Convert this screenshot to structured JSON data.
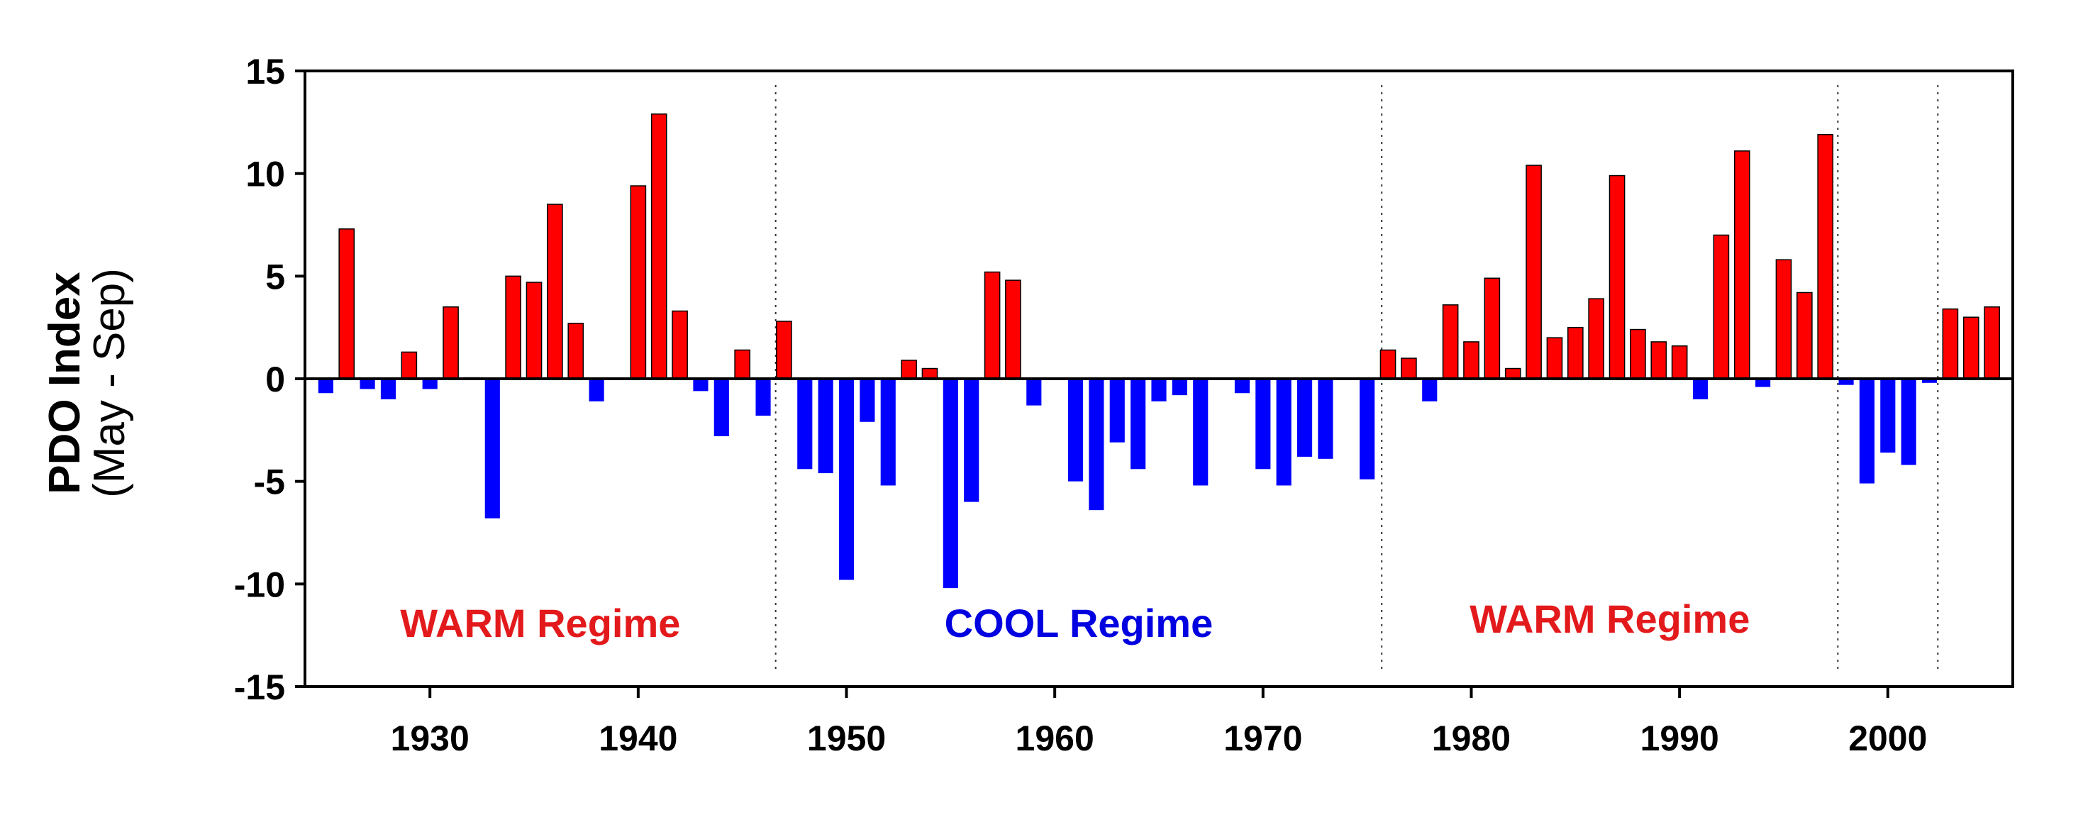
{
  "chart_data": {
    "type": "bar",
    "title": "",
    "ylabel": "PDO Index",
    "ylabel_sub": "(May - Sep)",
    "xlabel": "",
    "xlim": [
      1924,
      2006
    ],
    "ylim": [
      -15,
      15
    ],
    "y_ticks": [
      "15",
      "10",
      "5",
      "0",
      "-5",
      "-10",
      "-15"
    ],
    "x_ticks": [
      "1930",
      "1940",
      "1950",
      "1960",
      "1970",
      "1980",
      "1990",
      "2000"
    ],
    "grid": false,
    "colors": {
      "positive": "#ff0000",
      "negative": "#0000ff",
      "warm_text": "#e31a1c",
      "cool_text": "#0000e0"
    },
    "regime_dividers": [
      1946.6,
      1975.7,
      1997.6,
      2002.4
    ],
    "regimes": [
      {
        "label": "WARM Regime",
        "kind": "warm"
      },
      {
        "label": "COOL Regime",
        "kind": "cool"
      },
      {
        "label": "WARM Regime",
        "kind": "warm"
      }
    ],
    "x": [
      1925,
      1926,
      1927,
      1928,
      1929,
      1930,
      1931,
      1932,
      1933,
      1934,
      1935,
      1936,
      1937,
      1938,
      1939,
      1940,
      1941,
      1942,
      1943,
      1944,
      1945,
      1946,
      1947,
      1948,
      1949,
      1950,
      1951,
      1952,
      1953,
      1954,
      1955,
      1956,
      1957,
      1958,
      1959,
      1960,
      1961,
      1962,
      1963,
      1964,
      1965,
      1966,
      1967,
      1968,
      1969,
      1970,
      1971,
      1972,
      1973,
      1974,
      1975,
      1976,
      1977,
      1978,
      1979,
      1980,
      1981,
      1982,
      1983,
      1984,
      1985,
      1986,
      1987,
      1988,
      1989,
      1990,
      1991,
      1992,
      1993,
      1994,
      1995,
      1996,
      1997,
      1998,
      1999,
      2000,
      2001,
      2002,
      2003,
      2004,
      2005
    ],
    "values": [
      -0.7,
      7.3,
      -0.5,
      -1.0,
      1.3,
      -0.5,
      3.5,
      0.05,
      -6.8,
      5.0,
      4.7,
      8.5,
      2.7,
      -1.1,
      0,
      9.4,
      12.9,
      3.3,
      -0.6,
      -2.8,
      1.4,
      -1.8,
      2.8,
      -4.4,
      -4.6,
      -9.8,
      -2.1,
      -5.2,
      0.9,
      0.5,
      -10.2,
      -6.0,
      5.2,
      4.8,
      -1.3,
      0,
      -5.0,
      -6.4,
      -3.1,
      -4.4,
      -1.1,
      -0.8,
      -5.2,
      0,
      -0.7,
      -4.4,
      -5.2,
      -3.8,
      -3.9,
      0,
      -4.9,
      1.4,
      1.0,
      -1.1,
      3.6,
      1.8,
      4.9,
      0.5,
      10.4,
      2.0,
      2.5,
      3.9,
      9.9,
      2.4,
      1.8,
      1.6,
      -1.0,
      7.0,
      11.1,
      -0.4,
      5.8,
      4.2,
      11.9,
      -0.3,
      -5.1,
      -3.6,
      -4.2,
      -0.2,
      3.4,
      3.0,
      3.5
    ]
  }
}
